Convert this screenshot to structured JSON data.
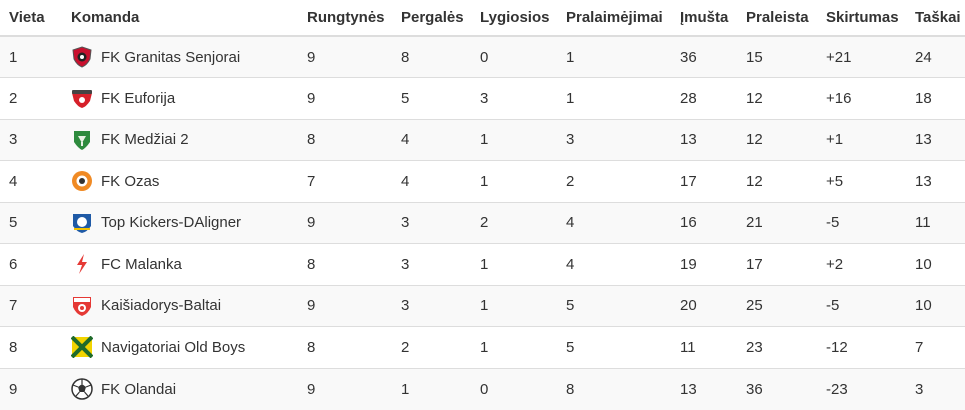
{
  "columns": [
    "Vieta",
    "Komanda",
    "Rungtynės",
    "Pergalės",
    "Lygiosios",
    "Pralaimėjimai",
    "Įmušta",
    "Praleista",
    "Skirtumas",
    "Taškai"
  ],
  "rows": [
    {
      "pos": "1",
      "team": "FK Granitas Senjorai",
      "crest": "granitas-crest-icon",
      "played": "9",
      "won": "8",
      "draw": "0",
      "lost": "1",
      "gf": "36",
      "ga": "15",
      "diff": "+21",
      "pts": "24"
    },
    {
      "pos": "2",
      "team": "FK Euforija",
      "crest": "euforija-crest-icon",
      "played": "9",
      "won": "5",
      "draw": "3",
      "lost": "1",
      "gf": "28",
      "ga": "12",
      "diff": "+16",
      "pts": "18"
    },
    {
      "pos": "3",
      "team": "FK Medžiai 2",
      "crest": "medziai-crest-icon",
      "played": "8",
      "won": "4",
      "draw": "1",
      "lost": "3",
      "gf": "13",
      "ga": "12",
      "diff": "+1",
      "pts": "13"
    },
    {
      "pos": "4",
      "team": "FK Ozas",
      "crest": "ozas-crest-icon",
      "played": "7",
      "won": "4",
      "draw": "1",
      "lost": "2",
      "gf": "17",
      "ga": "12",
      "diff": "+5",
      "pts": "13"
    },
    {
      "pos": "5",
      "team": "Top Kickers-DAligner",
      "crest": "top-kickers-crest-icon",
      "played": "9",
      "won": "3",
      "draw": "2",
      "lost": "4",
      "gf": "16",
      "ga": "21",
      "diff": "-5",
      "pts": "11"
    },
    {
      "pos": "6",
      "team": "FC Malanka",
      "crest": "malanka-lightning-icon",
      "played": "8",
      "won": "3",
      "draw": "1",
      "lost": "4",
      "gf": "19",
      "ga": "17",
      "diff": "+2",
      "pts": "10"
    },
    {
      "pos": "7",
      "team": "Kaišiadorys-Baltai",
      "crest": "kaisiadorys-crest-icon",
      "played": "9",
      "won": "3",
      "draw": "1",
      "lost": "5",
      "gf": "20",
      "ga": "25",
      "diff": "-5",
      "pts": "10"
    },
    {
      "pos": "8",
      "team": "Navigatoriai Old Boys",
      "crest": "navigatoriai-crest-icon",
      "played": "8",
      "won": "2",
      "draw": "1",
      "lost": "5",
      "gf": "11",
      "ga": "23",
      "diff": "-12",
      "pts": "7"
    },
    {
      "pos": "9",
      "team": "FK Olandai",
      "crest": "olandai-ball-icon",
      "played": "9",
      "won": "1",
      "draw": "0",
      "lost": "8",
      "gf": "13",
      "ga": "36",
      "diff": "-23",
      "pts": "3"
    }
  ]
}
